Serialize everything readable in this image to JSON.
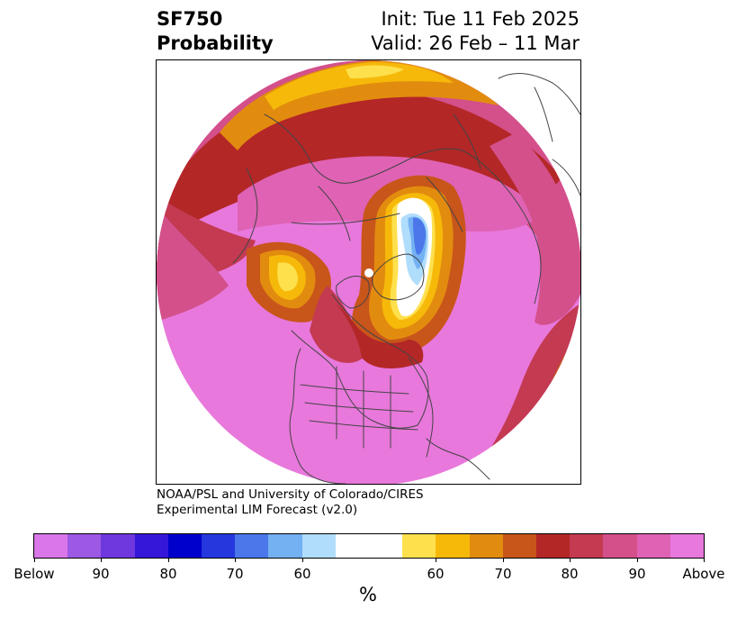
{
  "header": {
    "variable": "SF750",
    "product": "Probability",
    "init": "Init: Tue 11 Feb 2025",
    "valid": "Valid: 26 Feb – 11 Mar"
  },
  "credit": {
    "line1": "NOAA/PSL and University of Colorado/CIRES",
    "line2": "Experimental LIM Forecast (v2.0)"
  },
  "colorbar": {
    "unit": "%",
    "colors": [
      "#d977e9",
      "#9d58e4",
      "#6e38de",
      "#3517d9",
      "#0000cc",
      "#2438de",
      "#4b77ea",
      "#73b1f3",
      "#b0ddfc",
      "#ffffff",
      "#ffffff",
      "#fee04d",
      "#f6b90a",
      "#e28c0f",
      "#c8551a",
      "#b32727",
      "#c33a51",
      "#d3508a",
      "#df62b4",
      "#e878dc"
    ],
    "tick_labels": [
      "Below",
      "90",
      "80",
      "70",
      "60",
      "60",
      "70",
      "80",
      "90",
      "Above"
    ]
  },
  "map": {
    "region": "Northern Hemisphere polar stereographic",
    "colors": {
      "above_max": "#e878dc",
      "above_90": "#df62b4",
      "above_85": "#d3508a",
      "above_80": "#c33a51",
      "above_75": "#b32727",
      "above_70": "#c8551a",
      "above_65": "#e28c0f",
      "above_60": "#f6b90a",
      "above_55": "#fee04d",
      "neutral": "#ffffff",
      "below_55": "#b0ddfc",
      "below_60": "#73b1f3",
      "below_65": "#4b77ea",
      "coast": "#444444"
    }
  }
}
